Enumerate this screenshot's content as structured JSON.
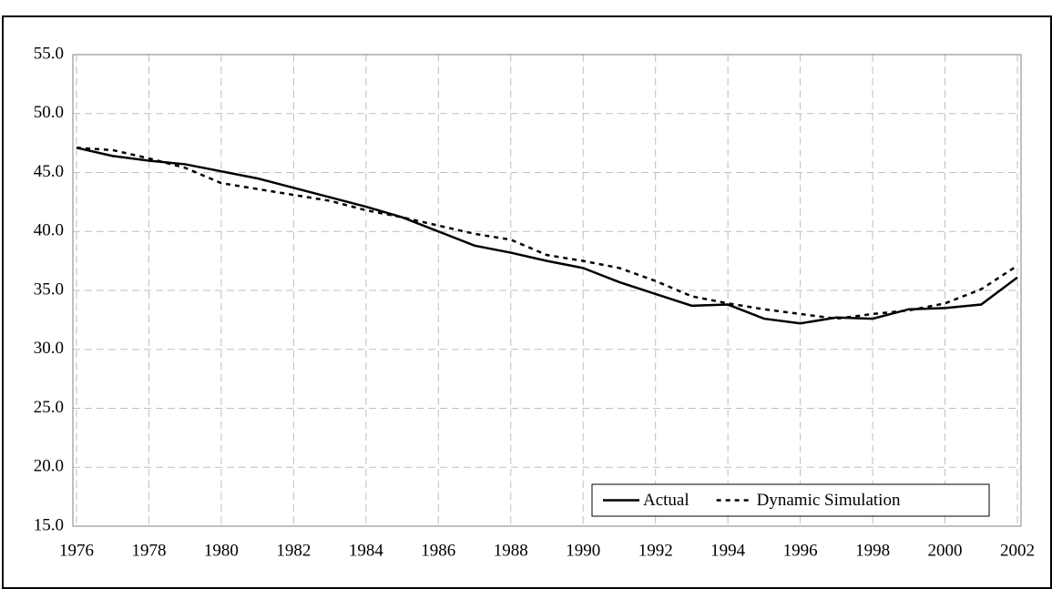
{
  "chart_data": {
    "type": "line",
    "x": [
      1976,
      1977,
      1978,
      1979,
      1980,
      1981,
      1982,
      1983,
      1984,
      1985,
      1986,
      1987,
      1988,
      1989,
      1990,
      1991,
      1992,
      1993,
      1994,
      1995,
      1996,
      1997,
      1998,
      1999,
      2000,
      2001,
      2002
    ],
    "series": [
      {
        "name": "Actual",
        "color": "#000000",
        "dash": "solid",
        "values": [
          47.1,
          46.4,
          46.0,
          45.7,
          45.1,
          44.5,
          43.7,
          42.9,
          42.1,
          41.2,
          40.0,
          38.8,
          38.2,
          37.5,
          36.9,
          35.7,
          34.7,
          33.7,
          33.8,
          32.6,
          32.2,
          32.7,
          32.6,
          33.4,
          33.5,
          33.8,
          36.1
        ]
      },
      {
        "name": "Dynamic Simulation",
        "color": "#000000",
        "dash": "dotted",
        "values": [
          47.1,
          46.9,
          46.2,
          45.4,
          44.1,
          43.6,
          43.1,
          42.6,
          41.8,
          41.2,
          40.5,
          39.8,
          39.3,
          38.0,
          37.5,
          36.9,
          35.8,
          34.5,
          33.9,
          33.4,
          33.0,
          32.6,
          33.0,
          33.3,
          33.9,
          35.1,
          37.1
        ]
      }
    ],
    "xlim": [
      1976,
      2002
    ],
    "xticks": [
      1976,
      1978,
      1980,
      1982,
      1984,
      1986,
      1988,
      1990,
      1992,
      1994,
      1996,
      1998,
      2000,
      2002
    ],
    "ylim": [
      15,
      55
    ],
    "yticks": [
      {
        "value": 15,
        "label": "15.0"
      },
      {
        "value": 20,
        "label": "20.0"
      },
      {
        "value": 25,
        "label": "25.0"
      },
      {
        "value": 30,
        "label": "30.0"
      },
      {
        "value": 35,
        "label": "35.0"
      },
      {
        "value": 40,
        "label": "40.0"
      },
      {
        "value": 45,
        "label": "45.0"
      },
      {
        "value": 50,
        "label": "50.0"
      },
      {
        "value": 55,
        "label": "55.0"
      }
    ],
    "grid": true,
    "legend": "lower right"
  }
}
